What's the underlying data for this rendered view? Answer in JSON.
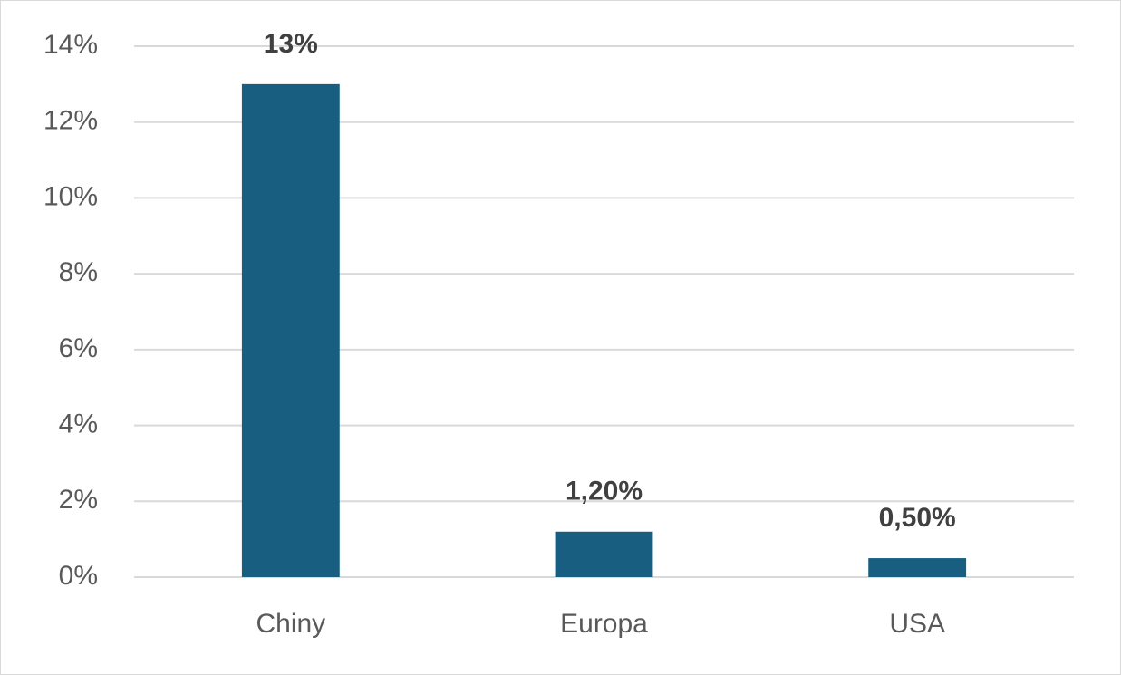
{
  "chart_data": {
    "type": "bar",
    "categories": [
      "Chiny",
      "Europa",
      "USA"
    ],
    "values": [
      13,
      1.2,
      0.5
    ],
    "value_labels": [
      "13%",
      "1,20%",
      "0,50%"
    ],
    "color": "#175e80",
    "ylim": [
      0,
      14
    ],
    "yticks": [
      {
        "value": 0,
        "label": "0%"
      },
      {
        "value": 2,
        "label": "2%"
      },
      {
        "value": 4,
        "label": "4%"
      },
      {
        "value": 6,
        "label": "6%"
      },
      {
        "value": 8,
        "label": "8%"
      },
      {
        "value": 10,
        "label": "10%"
      },
      {
        "value": 12,
        "label": "12%"
      },
      {
        "value": 14,
        "label": "14%"
      }
    ],
    "grid": true
  }
}
